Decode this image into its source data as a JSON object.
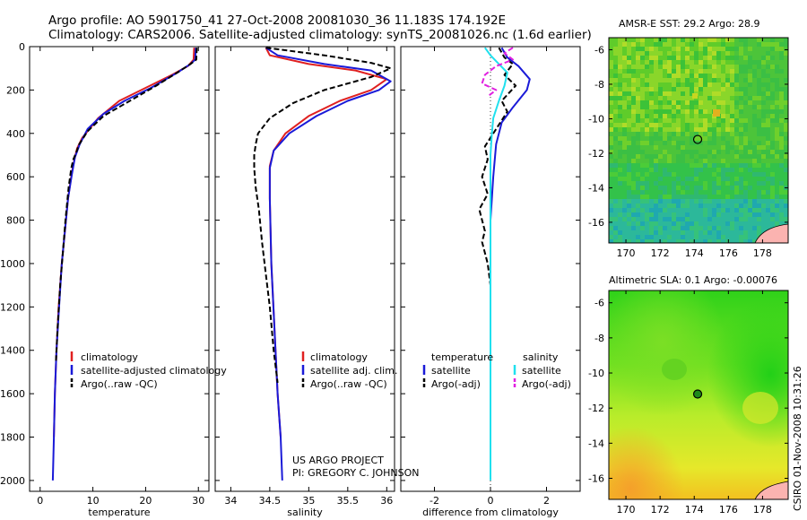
{
  "header": {
    "line1": "Argo profile: AO 5901750_41 27-Oct-2008 20081030_36 11.183S 174.192E",
    "line2": "Climatology: CARS2006. Satellite-adjusted climatology: synTS_20081026.nc (1.6d earlier)"
  },
  "side_label": "CSIRO 01-Nov-2008 10:31:26",
  "project": {
    "line1": "US ARGO PROJECT",
    "line2": "PI: GREGORY C. JOHNSON"
  },
  "colors": {
    "climatology": "#e02020",
    "satellite": "#1a1ad8",
    "argo": "#000000",
    "salinity_sat": "#20e0ee",
    "salinity_argo": "#e020e0"
  },
  "chart_data": [
    {
      "type": "line",
      "xlabel": "temperature",
      "ylabel": "",
      "xlim": [
        -2,
        32
      ],
      "ylim": [
        2050,
        0
      ],
      "x_ticks": [
        "0",
        "10",
        "20",
        "30"
      ],
      "y_ticks": [
        "0",
        "200",
        "400",
        "600",
        "800",
        "1000",
        "1200",
        "1400",
        "1600",
        "1800",
        "2000"
      ],
      "legend": [
        "climatology",
        "satellite-adjusted climatology",
        "Argo(..raw -QC)"
      ],
      "series": [
        {
          "name": "climatology",
          "color": "#e02020",
          "dash": "",
          "points": [
            [
              29.2,
              5
            ],
            [
              29.1,
              60
            ],
            [
              28,
              90
            ],
            [
              25,
              130
            ],
            [
              20,
              190
            ],
            [
              15,
              250
            ],
            [
              11,
              330
            ],
            [
              8,
              420
            ],
            [
              7,
              470
            ],
            [
              6.5,
              520
            ],
            [
              6,
              580
            ],
            [
              5.3,
              700
            ],
            [
              4.7,
              850
            ],
            [
              4.1,
              1000
            ],
            [
              3.5,
              1200
            ],
            [
              3.1,
              1400
            ],
            [
              2.8,
              1600
            ],
            [
              2.6,
              1800
            ]
          ]
        },
        {
          "name": "satellite-adjusted climatology",
          "color": "#1a1ad8",
          "dash": "",
          "points": [
            [
              29.5,
              5
            ],
            [
              29.4,
              60
            ],
            [
              28.5,
              80
            ],
            [
              26,
              120
            ],
            [
              21,
              190
            ],
            [
              16,
              250
            ],
            [
              12,
              310
            ],
            [
              9,
              380
            ],
            [
              7.5,
              450
            ],
            [
              6.6,
              510
            ],
            [
              6,
              590
            ],
            [
              5.3,
              700
            ],
            [
              4.7,
              850
            ],
            [
              4.1,
              1000
            ],
            [
              3.6,
              1200
            ],
            [
              3.1,
              1400
            ],
            [
              2.8,
              1600
            ],
            [
              2.6,
              1800
            ],
            [
              2.4,
              2000
            ]
          ]
        },
        {
          "name": "Argo(..raw -QC)",
          "color": "#000000",
          "dash": "6,3",
          "points": [
            [
              29.7,
              5
            ],
            [
              29.6,
              60
            ],
            [
              28.5,
              80
            ],
            [
              26,
              120
            ],
            [
              22,
              180
            ],
            [
              17,
              250
            ],
            [
              12,
              320
            ],
            [
              9,
              390
            ],
            [
              7.4,
              450
            ],
            [
              6.8,
              490
            ],
            [
              6.3,
              520
            ],
            [
              5.9,
              560
            ],
            [
              5.4,
              650
            ],
            [
              4.8,
              800
            ],
            [
              4.3,
              950
            ],
            [
              3.8,
              1100
            ],
            [
              3.3,
              1300
            ],
            [
              3,
              1450
            ]
          ]
        }
      ]
    },
    {
      "type": "line",
      "xlabel": "salinity",
      "ylabel": "",
      "xlim": [
        33.8,
        36.1
      ],
      "ylim": [
        2050,
        0
      ],
      "x_ticks": [
        "34",
        "34.5",
        "35",
        "35.5",
        "36"
      ],
      "legend": [
        "climatology",
        "satellite adj. clim.",
        "Argo(..raw -QC)"
      ],
      "series": [
        {
          "name": "climatology",
          "color": "#e02020",
          "dash": "",
          "points": [
            [
              34.45,
              5
            ],
            [
              34.5,
              40
            ],
            [
              35,
              80
            ],
            [
              35.6,
              110
            ],
            [
              36,
              150
            ],
            [
              35.8,
              200
            ],
            [
              35.4,
              250
            ],
            [
              35,
              320
            ],
            [
              34.7,
              400
            ],
            [
              34.55,
              480
            ],
            [
              34.5,
              550
            ],
            [
              34.5,
              700
            ],
            [
              34.52,
              1000
            ],
            [
              34.56,
              1300
            ],
            [
              34.6,
              1600
            ],
            [
              34.64,
              1800
            ]
          ]
        },
        {
          "name": "satellite adj. clim.",
          "color": "#1a1ad8",
          "dash": "",
          "points": [
            [
              34.45,
              5
            ],
            [
              34.6,
              40
            ],
            [
              35.2,
              80
            ],
            [
              35.8,
              110
            ],
            [
              36.05,
              160
            ],
            [
              35.9,
              200
            ],
            [
              35.5,
              250
            ],
            [
              35.1,
              320
            ],
            [
              34.75,
              400
            ],
            [
              34.55,
              480
            ],
            [
              34.5,
              560
            ],
            [
              34.5,
              700
            ],
            [
              34.52,
              1000
            ],
            [
              34.56,
              1300
            ],
            [
              34.6,
              1600
            ],
            [
              34.64,
              1800
            ],
            [
              34.66,
              2000
            ]
          ]
        },
        {
          "name": "Argo(..raw -QC)",
          "color": "#000000",
          "dash": "6,3",
          "points": [
            [
              34.45,
              5
            ],
            [
              35.2,
              40
            ],
            [
              35.8,
              75
            ],
            [
              36.05,
              100
            ],
            [
              35.8,
              140
            ],
            [
              35.2,
              200
            ],
            [
              34.8,
              260
            ],
            [
              34.5,
              330
            ],
            [
              34.35,
              400
            ],
            [
              34.32,
              450
            ],
            [
              34.3,
              500
            ],
            [
              34.3,
              560
            ],
            [
              34.32,
              650
            ],
            [
              34.36,
              750
            ],
            [
              34.4,
              900
            ],
            [
              34.45,
              1050
            ],
            [
              34.5,
              1200
            ],
            [
              34.55,
              1400
            ],
            [
              34.6,
              1550
            ]
          ]
        }
      ]
    },
    {
      "type": "line",
      "xlabel": "difference from climatology",
      "ylabel": "",
      "xlim": [
        -3.2,
        3.2
      ],
      "ylim": [
        2050,
        0
      ],
      "x_ticks": [
        "-2",
        "0",
        "2"
      ],
      "legend_left_title": "temperature",
      "legend_right_title": "salinity",
      "legend": [
        "satellite",
        "Argo(-adj)",
        "satellite",
        "Argo(-adj)"
      ],
      "series": [
        {
          "name": "temperature satellite",
          "color": "#1a1ad8",
          "dash": "",
          "points": [
            [
              0.4,
              5
            ],
            [
              0.6,
              50
            ],
            [
              1,
              90
            ],
            [
              1.4,
              150
            ],
            [
              1.3,
              200
            ],
            [
              0.8,
              280
            ],
            [
              0.4,
              350
            ],
            [
              0.2,
              450
            ],
            [
              0.1,
              600
            ],
            [
              0,
              800
            ],
            [
              0,
              1000
            ]
          ]
        },
        {
          "name": "temperature Argo(-adj)",
          "color": "#000000",
          "dash": "6,3",
          "points": [
            [
              0.3,
              5
            ],
            [
              0.5,
              50
            ],
            [
              0.8,
              80
            ],
            [
              0.5,
              130
            ],
            [
              0.9,
              180
            ],
            [
              0.4,
              250
            ],
            [
              0.6,
              300
            ],
            [
              0.2,
              380
            ],
            [
              -0.2,
              460
            ],
            [
              -0.1,
              520
            ],
            [
              -0.3,
              600
            ],
            [
              -0.1,
              680
            ],
            [
              -0.4,
              750
            ],
            [
              -0.2,
              850
            ],
            [
              -0.3,
              900
            ],
            [
              -0.1,
              1000
            ],
            [
              0,
              1100
            ]
          ]
        },
        {
          "name": "salinity satellite",
          "color": "#20e0ee",
          "dash": "",
          "points": [
            [
              -0.2,
              5
            ],
            [
              0,
              40
            ],
            [
              0.3,
              80
            ],
            [
              0.6,
              120
            ],
            [
              0.5,
              180
            ],
            [
              0.3,
              250
            ],
            [
              0.1,
              330
            ],
            [
              0.05,
              400
            ],
            [
              0,
              500
            ],
            [
              0,
              700
            ],
            [
              0,
              1000
            ],
            [
              0,
              1400
            ],
            [
              0,
              1800
            ],
            [
              0,
              2000
            ]
          ]
        },
        {
          "name": "salinity Argo(-adj)",
          "color": "#e020e0",
          "dash": "6,3",
          "points": [
            [
              0.8,
              5
            ],
            [
              0.5,
              30
            ],
            [
              0.8,
              60
            ],
            [
              0.2,
              90
            ],
            [
              -0.2,
              130
            ],
            [
              -0.3,
              170
            ],
            [
              0.2,
              200
            ],
            [
              -0.1,
              230
            ]
          ]
        }
      ]
    },
    {
      "type": "heatmap",
      "title": "AMSR-E SST: 29.2 Argo: 28.9",
      "x_ticks": [
        "170",
        "172",
        "174",
        "176",
        "178"
      ],
      "y_ticks": [
        "-6",
        "-8",
        "-10",
        "-12",
        "-14",
        "-16"
      ],
      "xlim": [
        169,
        179.5
      ],
      "ylim": [
        -17.2,
        -5.3
      ],
      "marker": [
        174.2,
        -11.2
      ]
    },
    {
      "type": "heatmap",
      "title": "Altimetric SLA: 0.1 Argo: -0.00076",
      "x_ticks": [
        "170",
        "172",
        "174",
        "176",
        "178"
      ],
      "y_ticks": [
        "-6",
        "-8",
        "-10",
        "-12",
        "-14",
        "-16"
      ],
      "xlim": [
        169,
        179.5
      ],
      "ylim": [
        -17.2,
        -5.3
      ],
      "marker": [
        174.2,
        -11.2
      ]
    }
  ]
}
